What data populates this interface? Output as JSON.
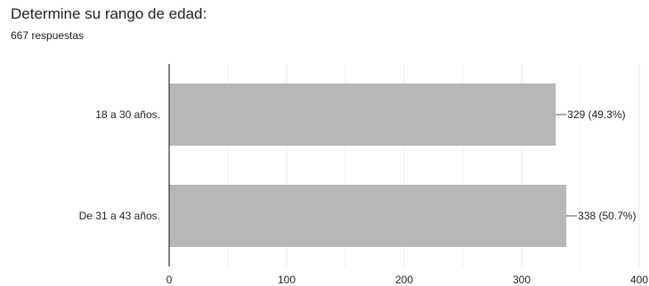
{
  "question": {
    "title": "Determine su rango de edad:",
    "responses": "667 respuestas"
  },
  "chart_data": {
    "type": "bar",
    "orientation": "horizontal",
    "categories": [
      "18 a 30 años.",
      "De 31 a 43 años."
    ],
    "values": [
      329,
      338
    ],
    "data_labels": [
      "329 (49.3%)",
      "338 (50.7%)"
    ],
    "xlim": [
      0,
      400
    ],
    "x_ticks": [
      0,
      100,
      200,
      300,
      400
    ],
    "grid": true,
    "bar_color": "#b7b7b7",
    "grid_color": "#ebebeb",
    "axis_color": "#333333"
  }
}
